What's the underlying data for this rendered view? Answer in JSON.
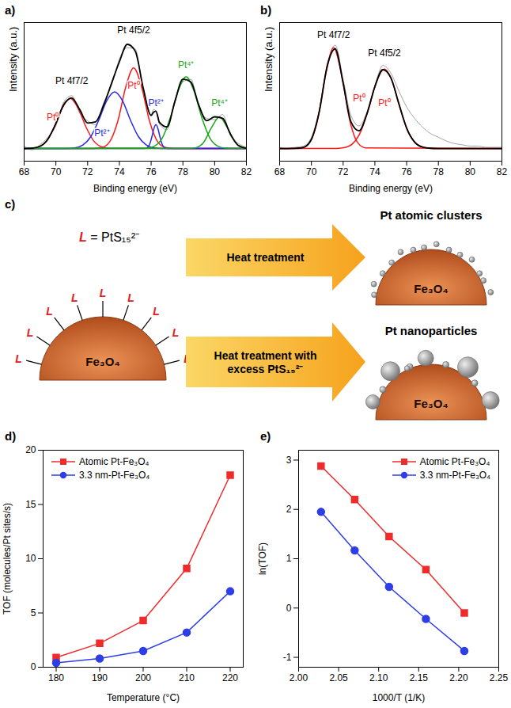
{
  "chart_data": [
    {
      "panel": "a)",
      "type": "spectrum",
      "x_label": "Binding energy (eV)",
      "y_label": "Intensity (a.u.)",
      "xlim": [
        68,
        82
      ],
      "xticks": [
        68,
        70,
        72,
        74,
        76,
        78,
        80,
        82
      ],
      "ylim": [
        -10,
        100
      ],
      "tick_labels": "x",
      "series": [
        {
          "color": "#8c8c8c",
          "line_style": "thin",
          "x": [
            68,
            68.5,
            69,
            69.5,
            70,
            70.5,
            71,
            71.5,
            72,
            72.5,
            73,
            73.5,
            74,
            74.5,
            75,
            75.5,
            76,
            76.15,
            76.3,
            76.45,
            76.5,
            77,
            77.5,
            78,
            78.5,
            79,
            79.5,
            80,
            80.5,
            81,
            81.5,
            82
          ],
          "values": [
            2,
            -1,
            3,
            9,
            18,
            37,
            42,
            28,
            22,
            19,
            36,
            50,
            71,
            80,
            79,
            46,
            27,
            31,
            30,
            22,
            20,
            15,
            39,
            53,
            55,
            33,
            24,
            23,
            27,
            10,
            4,
            1
          ]
        },
        {
          "color": "#ff1a1a",
          "line_style": "solid",
          "x": [
            68,
            68.4,
            68.9,
            69.4,
            69.9,
            70.4,
            70.9,
            71.4,
            71.9,
            72.4,
            72.9,
            73.4,
            82
          ],
          "values": [
            0,
            0.2,
            1.3,
            5.8,
            17,
            32,
            40,
            32,
            17,
            5.8,
            1.3,
            0.2,
            0
          ]
        },
        {
          "color": "#ff1a1a",
          "line_style": "solid",
          "x": [
            68,
            72.4,
            72.9,
            73.4,
            73.9,
            74.4,
            74.9,
            75.4,
            75.9,
            76.4,
            76.9,
            77.4,
            82
          ],
          "values": [
            0,
            0.1,
            0.8,
            5.6,
            21.7,
            48.8,
            64,
            48.8,
            21.7,
            5.6,
            0.8,
            0.1,
            0
          ]
        },
        {
          "color": "#2a2ae8",
          "line_style": "solid",
          "x": [
            68,
            70.7,
            71.2,
            71.7,
            72.2,
            72.7,
            73.2,
            73.7,
            74.2,
            74.7,
            75.2,
            75.7,
            76.2,
            76.7,
            82
          ],
          "values": [
            0,
            0.1,
            0.6,
            2.8,
            9.5,
            22.5,
            37.9,
            45,
            37.9,
            22.5,
            9.5,
            2.8,
            0.6,
            0.1,
            0
          ]
        },
        {
          "color": "#2a2ae8",
          "line_style": "solid",
          "x": [
            68,
            75.6,
            75.75,
            75.9,
            76.05,
            76.15,
            76.3,
            76.45,
            76.55,
            76.7,
            76.85,
            77,
            82
          ],
          "values": [
            0,
            0.1,
            0.7,
            3.2,
            9.5,
            14.8,
            19,
            14.8,
            9.5,
            3.2,
            0.7,
            0.1,
            0
          ]
        },
        {
          "color": "#1aa81a",
          "line_style": "solid",
          "x": [
            68,
            75.7,
            76.2,
            76.7,
            77.2,
            77.7,
            78.2,
            78.7,
            79.2,
            79.7,
            80.2,
            80.7,
            82
          ],
          "values": [
            0,
            0.3,
            1.9,
            8.3,
            24.2,
            45.6,
            57,
            45.6,
            24.2,
            8.3,
            1.9,
            0.3,
            0
          ]
        },
        {
          "color": "#1aa81a",
          "line_style": "solid",
          "x": [
            68,
            78.3,
            78.8,
            79.3,
            79.8,
            80.3,
            80.8,
            81.3,
            81.8,
            82
          ],
          "values": [
            0,
            0,
            0.6,
            4.8,
            16.6,
            25,
            16.6,
            4.8,
            0.6,
            0.2
          ]
        },
        {
          "color": "#000000",
          "line_style": "thick",
          "x": [
            68,
            68.5,
            69,
            69.5,
            70,
            70.5,
            71,
            71.5,
            72,
            72.5,
            73,
            73.5,
            74,
            74.5,
            75,
            75.5,
            76,
            76.15,
            76.3,
            76.45,
            76.5,
            77,
            77.5,
            78,
            78.5,
            79,
            79.5,
            80,
            80.5,
            81,
            81.5,
            82
          ],
          "values": [
            0,
            0.3,
            1.8,
            7.5,
            20,
            34.9,
            40,
            31,
            20.3,
            21.2,
            34.2,
            51.6,
            68.9,
            82.7,
            77.3,
            48.2,
            26.3,
            28.8,
            29.7,
            23.9,
            21.2,
            17.2,
            37.5,
            55.1,
            52.9,
            34.5,
            22.1,
            25.2,
            24,
            11.3,
            2.4,
            0.2
          ]
        }
      ],
      "annotations": [
        {
          "text": "Pt 4f7/2",
          "x": 71,
          "y": 54,
          "color": "#000000"
        },
        {
          "text": "Pt 4f5/2",
          "x": 74.9,
          "y": 94,
          "color": "#000000"
        },
        {
          "text": "Pt⁰",
          "x": 69.8,
          "y": 25,
          "color": "#ff1a1a"
        },
        {
          "text": "Pt⁰",
          "x": 74.9,
          "y": 50,
          "color": "#ff1a1a"
        },
        {
          "text": "Pt²⁺",
          "x": 72.9,
          "y": 12,
          "color": "#2a2ae8"
        },
        {
          "text": "Pt²⁺",
          "x": 76.3,
          "y": 36,
          "color": "#2a2ae8"
        },
        {
          "text": "Pt⁴⁺",
          "x": 78.2,
          "y": 66,
          "color": "#1aa81a"
        },
        {
          "text": "Pt⁴⁺",
          "x": 80.3,
          "y": 36,
          "color": "#1aa81a"
        }
      ]
    },
    {
      "panel": "b)",
      "type": "spectrum",
      "x_label": "Binding energy (eV)",
      "y_label": "Intensity (a.u.)",
      "xlim": [
        68,
        82
      ],
      "xticks": [
        68,
        70,
        72,
        74,
        76,
        78,
        80,
        82
      ],
      "ylim": [
        -10,
        100
      ],
      "tick_labels": "x",
      "series": [
        {
          "color": "#8c8c8c",
          "line_style": "thin",
          "x": [
            68,
            68.5,
            69,
            69.5,
            70,
            70.5,
            71,
            71.5,
            72,
            72.5,
            73,
            73.5,
            74,
            74.5,
            75,
            75.5,
            76,
            76.5,
            77,
            77.5,
            78,
            78.5,
            79,
            79.5,
            80,
            80.5,
            81,
            81.5,
            82
          ],
          "values": [
            1,
            0,
            1,
            2,
            9,
            31,
            67,
            82,
            55,
            26,
            18,
            29,
            50,
            66,
            60,
            46,
            33,
            24,
            17,
            12,
            9,
            6,
            4,
            3,
            2,
            2,
            1,
            1,
            1
          ]
        },
        {
          "color": "#ff1a1a",
          "line_style": "solid",
          "x": [
            68,
            69.4,
            69.9,
            70.4,
            70.9,
            71.4,
            71.9,
            72.4,
            72.9,
            73.4,
            82
          ],
          "values": [
            0,
            0.6,
            5,
            23.3,
            58.8,
            80,
            58.8,
            23.3,
            5,
            0.6,
            0
          ]
        },
        {
          "color": "#ff1a1a",
          "line_style": "solid",
          "x": [
            68,
            71.6,
            72.1,
            72.6,
            73.1,
            73.6,
            74.1,
            74.6,
            75.1,
            75.6,
            76.1,
            76.6,
            77.1,
            77.6,
            82
          ],
          "values": [
            0,
            0.1,
            0.8,
            3.9,
            13.2,
            31.5,
            53,
            63,
            53,
            31.5,
            13.2,
            3.9,
            0.8,
            0.1,
            0
          ]
        },
        {
          "color": "#000000",
          "line_style": "thick",
          "x": [
            68,
            68.5,
            69,
            69.5,
            70,
            70.5,
            71,
            71.5,
            72,
            72.5,
            73,
            73.5,
            74,
            74.5,
            75,
            75.5,
            76,
            76.5,
            77,
            77.5,
            78,
            78.5,
            79,
            79.5,
            80,
            80.5,
            81,
            81.5,
            82
          ],
          "values": [
            0,
            0,
            0.1,
            0.9,
            7.2,
            29.5,
            65.7,
            79.1,
            51.9,
            21,
            14.1,
            27.6,
            49.1,
            62.6,
            56.4,
            36,
            16.2,
            5.2,
            1.2,
            0.2,
            0,
            0,
            0,
            0,
            0,
            0,
            0,
            0,
            0
          ]
        }
      ],
      "annotations": [
        {
          "text": "Pt 4f7/2",
          "x": 71.4,
          "y": 90,
          "color": "#000000"
        },
        {
          "text": "Pt 4f5/2",
          "x": 74.6,
          "y": 76,
          "color": "#000000"
        },
        {
          "text": "Pt⁰",
          "x": 73,
          "y": 40,
          "color": "#ff1a1a"
        },
        {
          "text": "Pt⁰",
          "x": 74.6,
          "y": 36,
          "color": "#ff1a1a"
        }
      ]
    },
    {
      "panel": "d)",
      "type": "line",
      "x_label": "Temperature (°C)",
      "y_label": "TOF (molecules/Pt sites/s)",
      "x": [
        180,
        190,
        200,
        210,
        220
      ],
      "xlim": [
        177,
        223
      ],
      "xticks": [
        180,
        190,
        200,
        210,
        220
      ],
      "ylim": [
        0,
        20
      ],
      "yticks": [
        0,
        5,
        10,
        15,
        20
      ],
      "legend": "top-left",
      "series": [
        {
          "name": "Atomic Pt-Fe₃O₄",
          "color": "#ef2b2b",
          "marker": "square",
          "values": [
            0.9,
            2.2,
            4.3,
            9.1,
            17.7
          ]
        },
        {
          "name": "3.3 nm-Pt-Fe₃O₄",
          "color": "#2e3ee6",
          "marker": "circle",
          "values": [
            0.4,
            0.8,
            1.5,
            3.2,
            7.0
          ]
        }
      ]
    },
    {
      "panel": "e)",
      "type": "line",
      "x_label": "1000/T (1/K)",
      "y_label": "ln(TOF)",
      "x": [
        2.207,
        2.159,
        2.113,
        2.07,
        2.028
      ],
      "xlim": [
        2.0,
        2.25
      ],
      "xticks": [
        {
          "value": 2.0,
          "label": "2.00"
        },
        2.05,
        {
          "value": 2.1,
          "label": "2.10"
        },
        2.15,
        {
          "value": 2.2,
          "label": "2.20"
        },
        2.25
      ],
      "ylim": [
        -1.2,
        3.2
      ],
      "yticks": [
        -1,
        0,
        1,
        2,
        3
      ],
      "legend": "top-right",
      "series": [
        {
          "name": "Atomic Pt-Fe₃O₄",
          "color": "#ef2b2b",
          "marker": "square",
          "values": [
            -0.1,
            0.78,
            1.45,
            2.2,
            2.88
          ]
        },
        {
          "name": "3.3 nm-Pt-Fe₃O₄",
          "color": "#2e3ee6",
          "marker": "circle",
          "values": [
            -0.87,
            -0.22,
            0.43,
            1.17,
            1.95
          ]
        }
      ]
    }
  ],
  "diagram": {
    "panel": "c)",
    "ligand_key": "L = PtS₁₅²⁻",
    "ligand_label": "L",
    "ligand_count": 9,
    "support_label": "Fe₃O₄",
    "arrows": [
      {
        "label": "Heat treatment",
        "product": "Pt atomic clusters"
      },
      {
        "label": "Heat treatment with excess PtS₁₅²⁻",
        "product": "Pt nanoparticles"
      }
    ]
  }
}
